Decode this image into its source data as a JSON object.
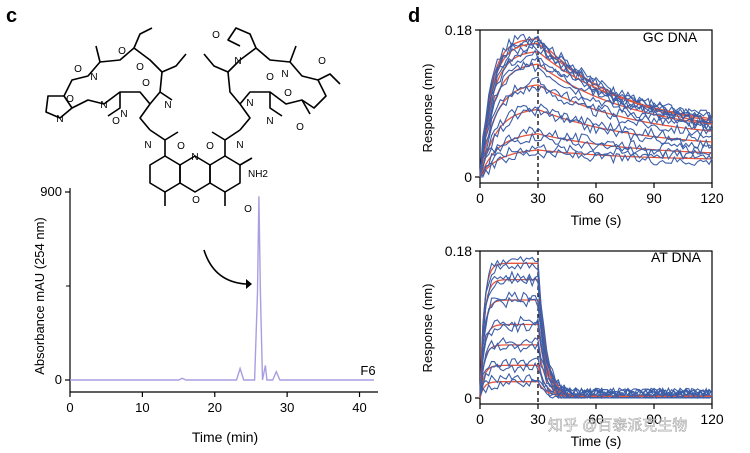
{
  "panel_c": {
    "label": "c",
    "chemistry": {
      "atoms": [
        "O",
        "O",
        "O",
        "O",
        "N",
        "N",
        "N",
        "N",
        "N",
        "N",
        "O",
        "O",
        "O",
        "O",
        "N",
        "N",
        "N",
        "N",
        "N",
        "O",
        "O",
        "O",
        "O",
        "O",
        "NH2",
        "N",
        "O",
        "O"
      ]
    },
    "chart_data": {
      "type": "line",
      "title": "",
      "xlabel": "Time (min)",
      "ylabel": "Absorbance mAU (254 nm)",
      "xlim": [
        0,
        42
      ],
      "ylim": [
        0,
        900
      ],
      "xticks": [
        "0",
        "10",
        "20",
        "30",
        "40"
      ],
      "yticks": [
        "0",
        "900"
      ],
      "trace_label": "F6",
      "color": "#a99ee0",
      "series": [
        {
          "name": "F6",
          "x": [
            0,
            15,
            15.5,
            16,
            23,
            23.5,
            24,
            25.5,
            25.9,
            26.1,
            26.3,
            26.6,
            27,
            27.2,
            28,
            28.5,
            29,
            42
          ],
          "y": [
            0,
            0,
            8,
            0,
            0,
            55,
            0,
            0,
            420,
            880,
            420,
            0,
            70,
            0,
            0,
            40,
            0,
            0
          ]
        }
      ]
    }
  },
  "panel_d": {
    "label": "d",
    "charts": [
      {
        "type": "line",
        "title": "GC DNA",
        "xlabel": "Time (s)",
        "ylabel": "Response (nm)",
        "xlim": [
          0,
          120
        ],
        "ylim": [
          0,
          0.18
        ],
        "xticks": [
          "0",
          "30",
          "60",
          "90",
          "120"
        ],
        "yticks": [
          "0",
          "0.18"
        ],
        "dashed_x": 30,
        "data_color": "#3b5ea8",
        "fit_color": "#e8553a",
        "series": [
          {
            "name": "c1",
            "plateau": 0.17,
            "dissoc_end": 0.045
          },
          {
            "name": "c2",
            "plateau": 0.165,
            "dissoc_end": 0.05
          },
          {
            "name": "c3",
            "plateau": 0.155,
            "dissoc_end": 0.055
          },
          {
            "name": "c4",
            "plateau": 0.14,
            "dissoc_end": 0.05
          },
          {
            "name": "c5",
            "plateau": 0.115,
            "dissoc_end": 0.045
          },
          {
            "name": "c6",
            "plateau": 0.085,
            "dissoc_end": 0.035
          },
          {
            "name": "c7",
            "plateau": 0.055,
            "dissoc_end": 0.025
          },
          {
            "name": "c8",
            "plateau": 0.035,
            "dissoc_end": 0.02
          }
        ]
      },
      {
        "type": "line",
        "title": "AT DNA",
        "xlabel": "Time (s)",
        "ylabel": "Response (nm)",
        "xlim": [
          0,
          120
        ],
        "ylim": [
          0,
          0.18
        ],
        "xticks": [
          "0",
          "30",
          "60",
          "90",
          "120"
        ],
        "yticks": [
          "0",
          "0.18"
        ],
        "dashed_x": 30,
        "data_color": "#3b5ea8",
        "fit_color": "#e8553a",
        "series": [
          {
            "name": "c1",
            "plateau": 0.165
          },
          {
            "name": "c2",
            "plateau": 0.145
          },
          {
            "name": "c3",
            "plateau": 0.12
          },
          {
            "name": "c4",
            "plateau": 0.09
          },
          {
            "name": "c5",
            "plateau": 0.065
          },
          {
            "name": "c6",
            "plateau": 0.04
          },
          {
            "name": "c7",
            "plateau": 0.02
          }
        ]
      }
    ],
    "watermark": "知乎 @百泰派克生物"
  }
}
